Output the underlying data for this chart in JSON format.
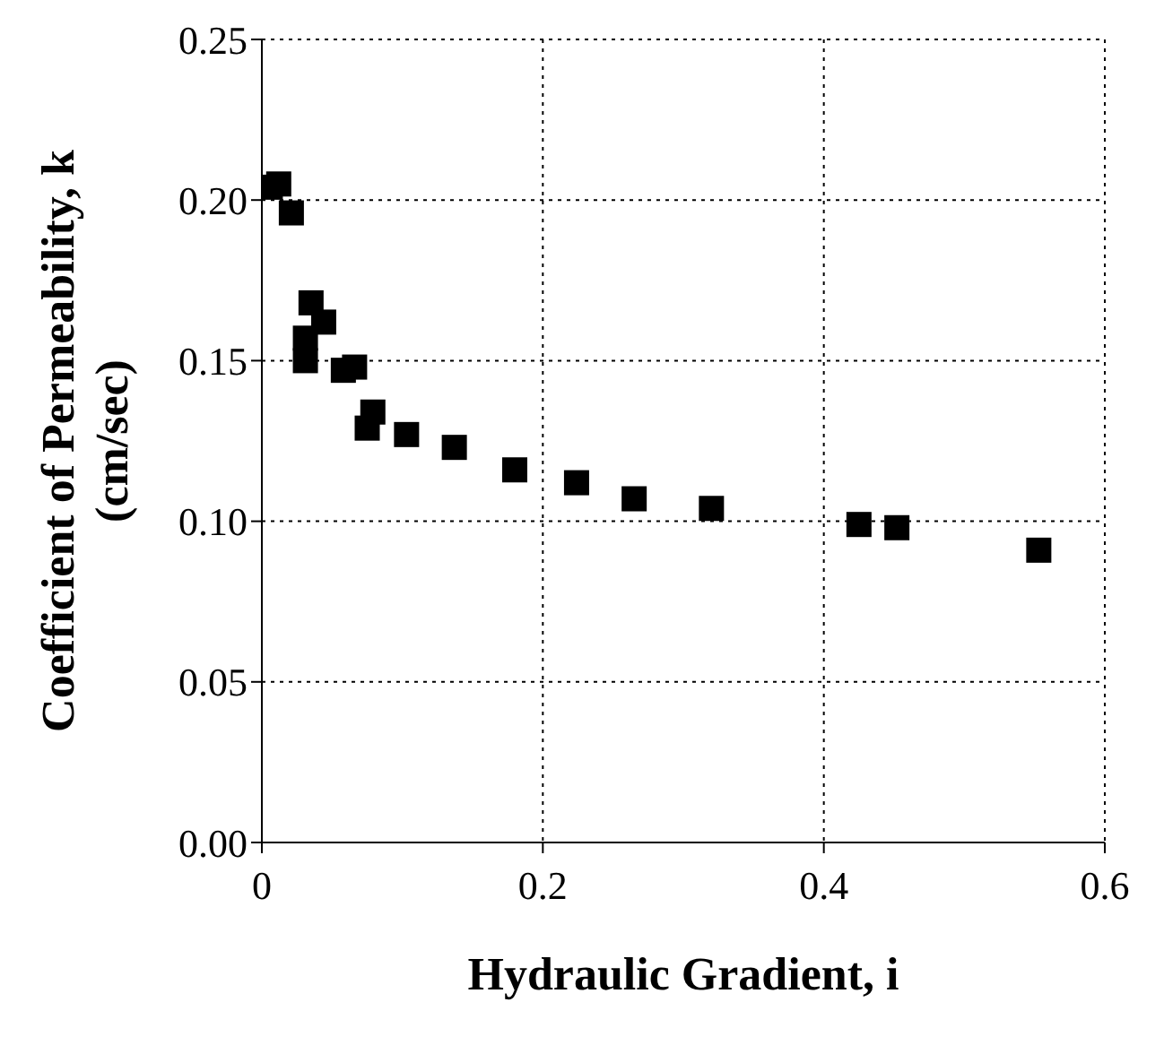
{
  "chart_data": {
    "type": "scatter",
    "xlabel": "Hydraulic Gradient, i",
    "ylabel": "Coefficient of Permeability, k (cm/sec)",
    "x": [
      0.006,
      0.012,
      0.021,
      0.035,
      0.044,
      0.031,
      0.031,
      0.058,
      0.066,
      0.079,
      0.075,
      0.103,
      0.137,
      0.18,
      0.224,
      0.265,
      0.32,
      0.425,
      0.452,
      0.553
    ],
    "series": [
      {
        "color": "#000000",
        "values": [
          0.204,
          0.205,
          0.196,
          0.168,
          0.162,
          0.157,
          0.15,
          0.147,
          0.148,
          0.134,
          0.129,
          0.127,
          0.123,
          0.116,
          0.112,
          0.107,
          0.104,
          0.099,
          0.098,
          0.091
        ]
      }
    ],
    "xlim": [
      0,
      0.6
    ],
    "xticks": [
      0,
      0.2,
      0.4,
      0.6
    ],
    "ylim": [
      0,
      0.25
    ],
    "yticks": [
      {
        "value": 0,
        "label": "0.00"
      },
      0.05,
      {
        "value": 0.1,
        "label": "0.10"
      },
      0.15,
      {
        "value": 0.2,
        "label": "0.20"
      },
      0.25
    ],
    "grid": true,
    "marker": "square",
    "legend": false
  }
}
